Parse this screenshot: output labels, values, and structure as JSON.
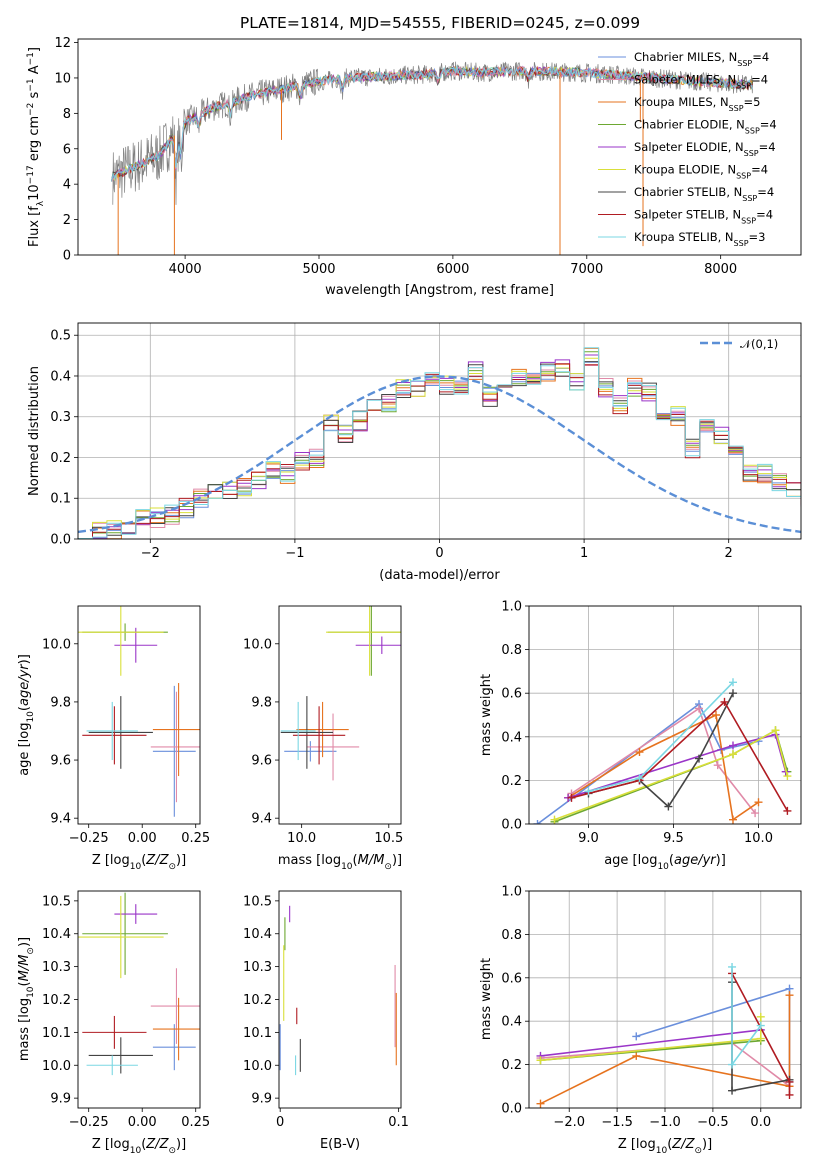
{
  "title": "PLATE=1814, MJD=54555, FIBERID=0245, z=0.099",
  "colors": {
    "chabrier_miles": "#6a8fdc",
    "salpeter_miles": "#e08aa8",
    "kroupa_miles": "#e6731f",
    "chabrier_elodie": "#6da832",
    "salpeter_elodie": "#9a35c8",
    "kroupa_elodie": "#d9df3a",
    "chabrier_stelib": "#444444",
    "salpeter_stelib": "#b01c22",
    "kroupa_stelib": "#7bd7e3",
    "data": "#808080",
    "normal": "#5b8fd6"
  },
  "chart_data": [
    {
      "type": "line",
      "xlabel": "wavelength [Angstrom, rest frame]",
      "ylabel": "Flux [f_λ10^-17 erg cm^-2 s^-1 A^-1]",
      "xlim": [
        3200,
        8600
      ],
      "ylim": [
        0,
        12.2
      ],
      "xticks": [
        4000,
        5000,
        6000,
        7000,
        8000
      ],
      "yticks": [
        0,
        2,
        4,
        6,
        8,
        10,
        12
      ],
      "legend_position": "right",
      "legend": [
        {
          "key": "chabrier_miles",
          "text": "Chabrier MILES, N",
          "n": "4"
        },
        {
          "key": "salpeter_miles",
          "text": "Salpeter MILES, N",
          "n": "4"
        },
        {
          "key": "kroupa_miles",
          "text": "Kroupa MILES, N",
          "n": "5"
        },
        {
          "key": "chabrier_elodie",
          "text": "Chabrier ELODIE, N",
          "n": "4"
        },
        {
          "key": "salpeter_elodie",
          "text": "Salpeter ELODIE, N",
          "n": "4"
        },
        {
          "key": "kroupa_elodie",
          "text": "Kroupa ELODIE, N",
          "n": "4"
        },
        {
          "key": "chabrier_stelib",
          "text": "Chabrier STELIB, N",
          "n": "4"
        },
        {
          "key": "salpeter_stelib",
          "text": "Salpeter STELIB, N",
          "n": "4"
        },
        {
          "key": "kroupa_stelib",
          "text": "Kroupa STELIB, N",
          "n": "3"
        }
      ],
      "legend_sub": "SSP",
      "continuum": {
        "x": [
          3450,
          3600,
          3800,
          4000,
          4200,
          4500,
          4800,
          5000,
          5200,
          5500,
          5800,
          6000,
          6200,
          6500,
          7000,
          7500,
          8000,
          8250
        ],
        "y": [
          4.4,
          4.9,
          5.6,
          7.5,
          8.3,
          9.0,
          9.5,
          9.8,
          10.0,
          10.1,
          10.2,
          10.4,
          10.3,
          10.4,
          10.3,
          10.0,
          9.7,
          9.6
        ]
      }
    },
    {
      "type": "bar",
      "xlabel": "(data-model)/error",
      "ylabel": "Normed distribution",
      "xlim": [
        -2.5,
        2.5
      ],
      "ylim": [
        0,
        0.53
      ],
      "xticks": [
        -2,
        -1,
        0,
        1,
        2
      ],
      "yticks": [
        0.0,
        0.1,
        0.2,
        0.3,
        0.4,
        0.5
      ],
      "legend": "𝒩(0,1)",
      "legend_position": "top-right",
      "bin_width": 0.1,
      "bin_start": -2.5,
      "reference_series": [
        0.026,
        0.022,
        0.025,
        0.03,
        0.05,
        0.052,
        0.06,
        0.075,
        0.1,
        0.11,
        0.12,
        0.13,
        0.14,
        0.17,
        0.16,
        0.19,
        0.2,
        0.28,
        0.26,
        0.29,
        0.32,
        0.33,
        0.37,
        0.37,
        0.39,
        0.38,
        0.37,
        0.41,
        0.35,
        0.36,
        0.4,
        0.4,
        0.41,
        0.42,
        0.39,
        0.45,
        0.37,
        0.33,
        0.37,
        0.36,
        0.3,
        0.3,
        0.22,
        0.27,
        0.25,
        0.22,
        0.16,
        0.16,
        0.14,
        0.12,
        0.1,
        0.09,
        0.08,
        0.07,
        0.06,
        0.06,
        0.06,
        0.05,
        0.04,
        0.03,
        0.02
      ]
    },
    {
      "type": "scatter",
      "xlabel": "Z [log10(Z/Z☉)]",
      "ylabel": "age  [log10(age/yr)]",
      "xlim": [
        -0.3,
        0.27
      ],
      "ylim": [
        9.38,
        10.13
      ],
      "xticks": [
        -0.25,
        0.0,
        0.25
      ],
      "yticks": [
        9.4,
        9.6,
        9.8,
        10.0
      ],
      "points": [
        {
          "key": "chabrier_miles",
          "x": 0.15,
          "y": 9.63,
          "ex": 0.1,
          "ey": 0.45
        },
        {
          "key": "salpeter_miles",
          "x": 0.16,
          "y": 9.645,
          "ex": 0.12,
          "ey": 0.38
        },
        {
          "key": "kroupa_miles",
          "x": 0.17,
          "y": 9.705,
          "ex": 0.12,
          "ey": 0.32
        },
        {
          "key": "chabrier_elodie",
          "x": -0.08,
          "y": 10.04,
          "ex": 0.2,
          "ey": 0.06
        },
        {
          "key": "salpeter_elodie",
          "x": -0.03,
          "y": 9.995,
          "ex": 0.1,
          "ey": 0.12
        },
        {
          "key": "kroupa_elodie",
          "x": -0.1,
          "y": 10.04,
          "ex": 0.2,
          "ey": 0.3
        },
        {
          "key": "chabrier_stelib",
          "x": -0.1,
          "y": 9.695,
          "ex": 0.15,
          "ey": 0.25
        },
        {
          "key": "salpeter_stelib",
          "x": -0.13,
          "y": 9.685,
          "ex": 0.15,
          "ey": 0.2
        },
        {
          "key": "kroupa_stelib",
          "x": -0.14,
          "y": 9.7,
          "ex": 0.12,
          "ey": 0.2
        }
      ]
    },
    {
      "type": "scatter",
      "xlabel": "mass [log10(M/M☉)]",
      "ylabel": "",
      "xlim": [
        9.87,
        10.57
      ],
      "ylim": [
        9.38,
        10.13
      ],
      "xticks": [
        10.0,
        10.5
      ],
      "yticks": [
        9.4,
        9.6,
        9.8,
        10.0
      ],
      "points": [
        {
          "key": "chabrier_miles",
          "x": 10.05,
          "y": 9.63,
          "ex": 0.15,
          "ey": 0.07
        },
        {
          "key": "salpeter_miles",
          "x": 10.18,
          "y": 9.645,
          "ex": 0.15,
          "ey": 0.23
        },
        {
          "key": "kroupa_miles",
          "x": 10.12,
          "y": 9.705,
          "ex": 0.15,
          "ey": 0.19
        },
        {
          "key": "chabrier_elodie",
          "x": 10.4,
          "y": 10.04,
          "ex": 0.25,
          "ey": 0.3
        },
        {
          "key": "salpeter_elodie",
          "x": 10.46,
          "y": 9.995,
          "ex": 0.15,
          "ey": 0.06
        },
        {
          "key": "kroupa_elodie",
          "x": 10.39,
          "y": 10.04,
          "ex": 0.25,
          "ey": 0.3
        },
        {
          "key": "chabrier_stelib",
          "x": 10.03,
          "y": 9.695,
          "ex": 0.15,
          "ey": 0.25
        },
        {
          "key": "salpeter_stelib",
          "x": 10.1,
          "y": 9.685,
          "ex": 0.15,
          "ey": 0.2
        },
        {
          "key": "kroupa_stelib",
          "x": 9.98,
          "y": 9.7,
          "ex": 0.1,
          "ey": 0.2
        }
      ]
    },
    {
      "type": "line",
      "xlabel": "age  [log10(age/yr)]",
      "ylabel": "mass weight",
      "xlim": [
        8.65,
        10.25
      ],
      "ylim": [
        0,
        1.0
      ],
      "xticks": [
        9.0,
        9.5,
        10.0
      ],
      "yticks": [
        0.0,
        0.2,
        0.4,
        0.6,
        0.8,
        1.0
      ],
      "series": [
        {
          "key": "chabrier_miles",
          "x": [
            8.7,
            9.65,
            9.78,
            10.0
          ],
          "y": [
            0.0,
            0.55,
            0.34,
            0.38
          ]
        },
        {
          "key": "salpeter_miles",
          "x": [
            8.9,
            9.65,
            9.76,
            9.98
          ],
          "y": [
            0.14,
            0.53,
            0.27,
            0.05
          ]
        },
        {
          "key": "kroupa_miles",
          "x": [
            8.88,
            9.3,
            9.75,
            9.85,
            10.0
          ],
          "y": [
            0.12,
            0.33,
            0.5,
            0.02,
            0.1
          ]
        },
        {
          "key": "chabrier_elodie",
          "x": [
            8.8,
            9.85,
            10.1,
            10.17
          ],
          "y": [
            0.01,
            0.32,
            0.43,
            0.24
          ]
        },
        {
          "key": "salpeter_elodie",
          "x": [
            8.88,
            9.85,
            10.1,
            10.16
          ],
          "y": [
            0.12,
            0.36,
            0.41,
            0.24
          ]
        },
        {
          "key": "kroupa_elodie",
          "x": [
            8.8,
            9.85,
            10.1,
            10.17
          ],
          "y": [
            0.02,
            0.32,
            0.43,
            0.22
          ]
        },
        {
          "key": "chabrier_stelib",
          "x": [
            9.0,
            9.3,
            9.47,
            9.65,
            9.85
          ],
          "y": [
            0.14,
            0.2,
            0.08,
            0.3,
            0.6
          ]
        },
        {
          "key": "salpeter_stelib",
          "x": [
            8.9,
            9.3,
            9.8,
            10.17
          ],
          "y": [
            0.12,
            0.2,
            0.56,
            0.06
          ]
        },
        {
          "key": "kroupa_stelib",
          "x": [
            9.0,
            9.3,
            9.85
          ],
          "y": [
            0.15,
            0.21,
            0.65
          ]
        }
      ]
    },
    {
      "type": "scatter",
      "xlabel": "Z [log10(Z/Z☉)]",
      "ylabel": "mass [log10(M/M☉)]",
      "xlim": [
        -0.3,
        0.27
      ],
      "ylim": [
        9.87,
        10.53
      ],
      "xticks": [
        -0.25,
        0.0,
        0.25
      ],
      "yticks": [
        9.9,
        10.0,
        10.1,
        10.2,
        10.3,
        10.4,
        10.5
      ],
      "points": [
        {
          "key": "chabrier_miles",
          "x": 0.15,
          "y": 10.055,
          "ex": 0.1,
          "ey": 0.14
        },
        {
          "key": "salpeter_miles",
          "x": 0.16,
          "y": 10.18,
          "ex": 0.12,
          "ey": 0.23
        },
        {
          "key": "kroupa_miles",
          "x": 0.17,
          "y": 10.11,
          "ex": 0.12,
          "ey": 0.19
        },
        {
          "key": "chabrier_elodie",
          "x": -0.08,
          "y": 10.4,
          "ex": 0.2,
          "ey": 0.25
        },
        {
          "key": "salpeter_elodie",
          "x": -0.03,
          "y": 10.46,
          "ex": 0.1,
          "ey": 0.06
        },
        {
          "key": "kroupa_elodie",
          "x": -0.1,
          "y": 10.39,
          "ex": 0.2,
          "ey": 0.25
        },
        {
          "key": "chabrier_stelib",
          "x": -0.1,
          "y": 10.03,
          "ex": 0.15,
          "ey": 0.11
        },
        {
          "key": "salpeter_stelib",
          "x": -0.13,
          "y": 10.1,
          "ex": 0.15,
          "ey": 0.1
        },
        {
          "key": "kroupa_stelib",
          "x": -0.14,
          "y": 10.0,
          "ex": 0.12,
          "ey": 0.06
        }
      ]
    },
    {
      "type": "scatter",
      "xlabel": "E(B-V)",
      "ylabel": "",
      "xlim": [
        -0.001,
        0.102
      ],
      "ylim": [
        9.87,
        10.53
      ],
      "xticks": [
        0.0,
        0.1
      ],
      "yticks": [
        9.9,
        10.0,
        10.1,
        10.2,
        10.3,
        10.4,
        10.5
      ],
      "points": [
        {
          "key": "chabrier_miles",
          "x": 0.0,
          "y": 10.055,
          "ey": 0.14
        },
        {
          "key": "salpeter_miles",
          "x": 0.097,
          "y": 10.18,
          "ey": 0.25
        },
        {
          "key": "kroupa_miles",
          "x": 0.098,
          "y": 10.11,
          "ey": 0.22
        },
        {
          "key": "chabrier_elodie",
          "x": 0.004,
          "y": 10.4,
          "ey": 0.1
        },
        {
          "key": "salpeter_elodie",
          "x": 0.008,
          "y": 10.46,
          "ey": 0.05
        },
        {
          "key": "kroupa_elodie",
          "x": 0.003,
          "y": 10.25,
          "ey": 0.23
        },
        {
          "key": "chabrier_stelib",
          "x": 0.017,
          "y": 10.03,
          "ey": 0.1
        },
        {
          "key": "salpeter_stelib",
          "x": 0.014,
          "y": 10.15,
          "ey": 0.05
        },
        {
          "key": "kroupa_stelib",
          "x": 0.013,
          "y": 10.0,
          "ey": 0.06
        }
      ]
    },
    {
      "type": "line",
      "xlabel": "Z [log10(Z/Z☉)]",
      "ylabel": "mass weight",
      "xlim": [
        -2.42,
        0.42
      ],
      "ylim": [
        0,
        1.0
      ],
      "xticks": [
        -2.0,
        -1.5,
        -1.0,
        -0.5,
        0.0
      ],
      "yticks": [
        0.0,
        0.2,
        0.4,
        0.6,
        0.8,
        1.0
      ],
      "series": [
        {
          "key": "chabrier_miles",
          "x": [
            -1.3,
            0.3,
            0.3
          ],
          "y": [
            0.33,
            0.55,
            0.12
          ]
        },
        {
          "key": "salpeter_miles",
          "x": [
            -2.3,
            -0.3,
            0.3
          ],
          "y": [
            0.23,
            0.3,
            0.1
          ]
        },
        {
          "key": "kroupa_miles",
          "x": [
            -2.3,
            -1.3,
            0.3,
            0.3
          ],
          "y": [
            0.02,
            0.24,
            0.1,
            0.52
          ]
        },
        {
          "key": "chabrier_elodie",
          "x": [
            -2.3,
            0.0
          ],
          "y": [
            0.22,
            0.31
          ]
        },
        {
          "key": "salpeter_elodie",
          "x": [
            -2.3,
            0.0
          ],
          "y": [
            0.24,
            0.36
          ]
        },
        {
          "key": "kroupa_elodie",
          "x": [
            -2.3,
            0.0,
            0.0
          ],
          "y": [
            0.22,
            0.32,
            0.42
          ]
        },
        {
          "key": "chabrier_stelib",
          "x": [
            -0.3,
            -0.3,
            0.3
          ],
          "y": [
            0.58,
            0.08,
            0.13
          ]
        },
        {
          "key": "salpeter_stelib",
          "x": [
            -0.3,
            0.3,
            0.3
          ],
          "y": [
            0.62,
            0.12,
            0.06
          ]
        },
        {
          "key": "kroupa_stelib",
          "x": [
            -0.3,
            -0.3,
            0.0
          ],
          "y": [
            0.65,
            0.2,
            0.38
          ]
        }
      ]
    }
  ]
}
